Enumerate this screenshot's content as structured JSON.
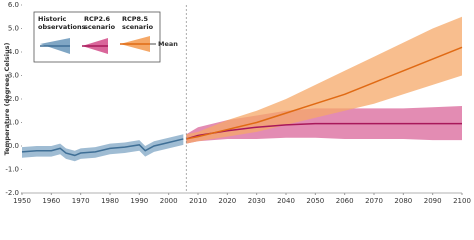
{
  "chart_data": {
    "type": "band-line",
    "y_label": "Temperature (degrees Celsius)",
    "mean_label": "Mean",
    "xlim": [
      1950,
      2100
    ],
    "xticks": [
      1950,
      1960,
      1970,
      1980,
      1990,
      2000,
      2010,
      2020,
      2030,
      2040,
      2050,
      2060,
      2070,
      2080,
      2090,
      2100
    ],
    "ylim": [
      -2,
      6
    ],
    "yticks": [
      {
        "value": -2,
        "label": "-2.0"
      },
      {
        "value": -1,
        "label": "-1.0"
      },
      {
        "value": 0,
        "label": "0.0"
      },
      {
        "value": 1,
        "label": "1.0"
      },
      {
        "value": 2,
        "label": "2.0"
      },
      {
        "value": 3,
        "label": "3.0"
      },
      {
        "value": 4,
        "label": "4.0"
      },
      {
        "value": 5,
        "label": "5.0"
      },
      {
        "value": 6,
        "label": "6.0"
      }
    ],
    "reference_line_x": 2006,
    "series": [
      {
        "name": "Historic observations",
        "color": "#3f6f96",
        "band_color": "#7fa6c4",
        "x": [
          1950,
          1955,
          1960,
          1963,
          1965,
          1968,
          1970,
          1975,
          1980,
          1985,
          1990,
          1992,
          1995,
          2000,
          2005
        ],
        "values": [
          -0.25,
          -0.2,
          -0.2,
          -0.1,
          -0.3,
          -0.4,
          -0.3,
          -0.25,
          -0.1,
          -0.05,
          0.05,
          -0.2,
          0,
          0.15,
          0.3
        ],
        "lower": [
          -0.5,
          -0.45,
          -0.45,
          -0.35,
          -0.55,
          -0.65,
          -0.55,
          -0.5,
          -0.35,
          -0.3,
          -0.2,
          -0.45,
          -0.25,
          -0.1,
          0.05
        ],
        "upper": [
          -0.05,
          0,
          0,
          0.1,
          -0.1,
          -0.2,
          -0.1,
          -0.05,
          0.1,
          0.15,
          0.25,
          0,
          0.2,
          0.35,
          0.5
        ]
      },
      {
        "name": "RCP2.6 scenario",
        "color": "#a8185a",
        "band_color": "#d9669a",
        "x": [
          2006,
          2010,
          2020,
          2030,
          2040,
          2050,
          2060,
          2070,
          2080,
          2090,
          2100
        ],
        "values": [
          0.3,
          0.45,
          0.65,
          0.8,
          0.9,
          0.95,
          0.95,
          0.95,
          0.95,
          0.95,
          0.95
        ],
        "lower": [
          0.1,
          0.2,
          0.3,
          0.3,
          0.35,
          0.35,
          0.3,
          0.3,
          0.3,
          0.25,
          0.25
        ],
        "upper": [
          0.5,
          0.8,
          1.1,
          1.3,
          1.5,
          1.6,
          1.6,
          1.6,
          1.6,
          1.65,
          1.7
        ]
      },
      {
        "name": "RCP8.5 scenario",
        "color": "#e06a14",
        "band_color": "#f5a868",
        "x": [
          2006,
          2010,
          2020,
          2030,
          2040,
          2050,
          2060,
          2070,
          2080,
          2090,
          2100
        ],
        "values": [
          0.3,
          0.4,
          0.7,
          1.0,
          1.4,
          1.8,
          2.2,
          2.7,
          3.2,
          3.7,
          4.2
        ],
        "lower": [
          0.1,
          0.2,
          0.4,
          0.6,
          0.9,
          1.2,
          1.5,
          1.8,
          2.2,
          2.6,
          3.0
        ],
        "upper": [
          0.5,
          0.6,
          1.1,
          1.5,
          2.0,
          2.6,
          3.2,
          3.8,
          4.4,
          5.0,
          5.5
        ]
      }
    ]
  }
}
